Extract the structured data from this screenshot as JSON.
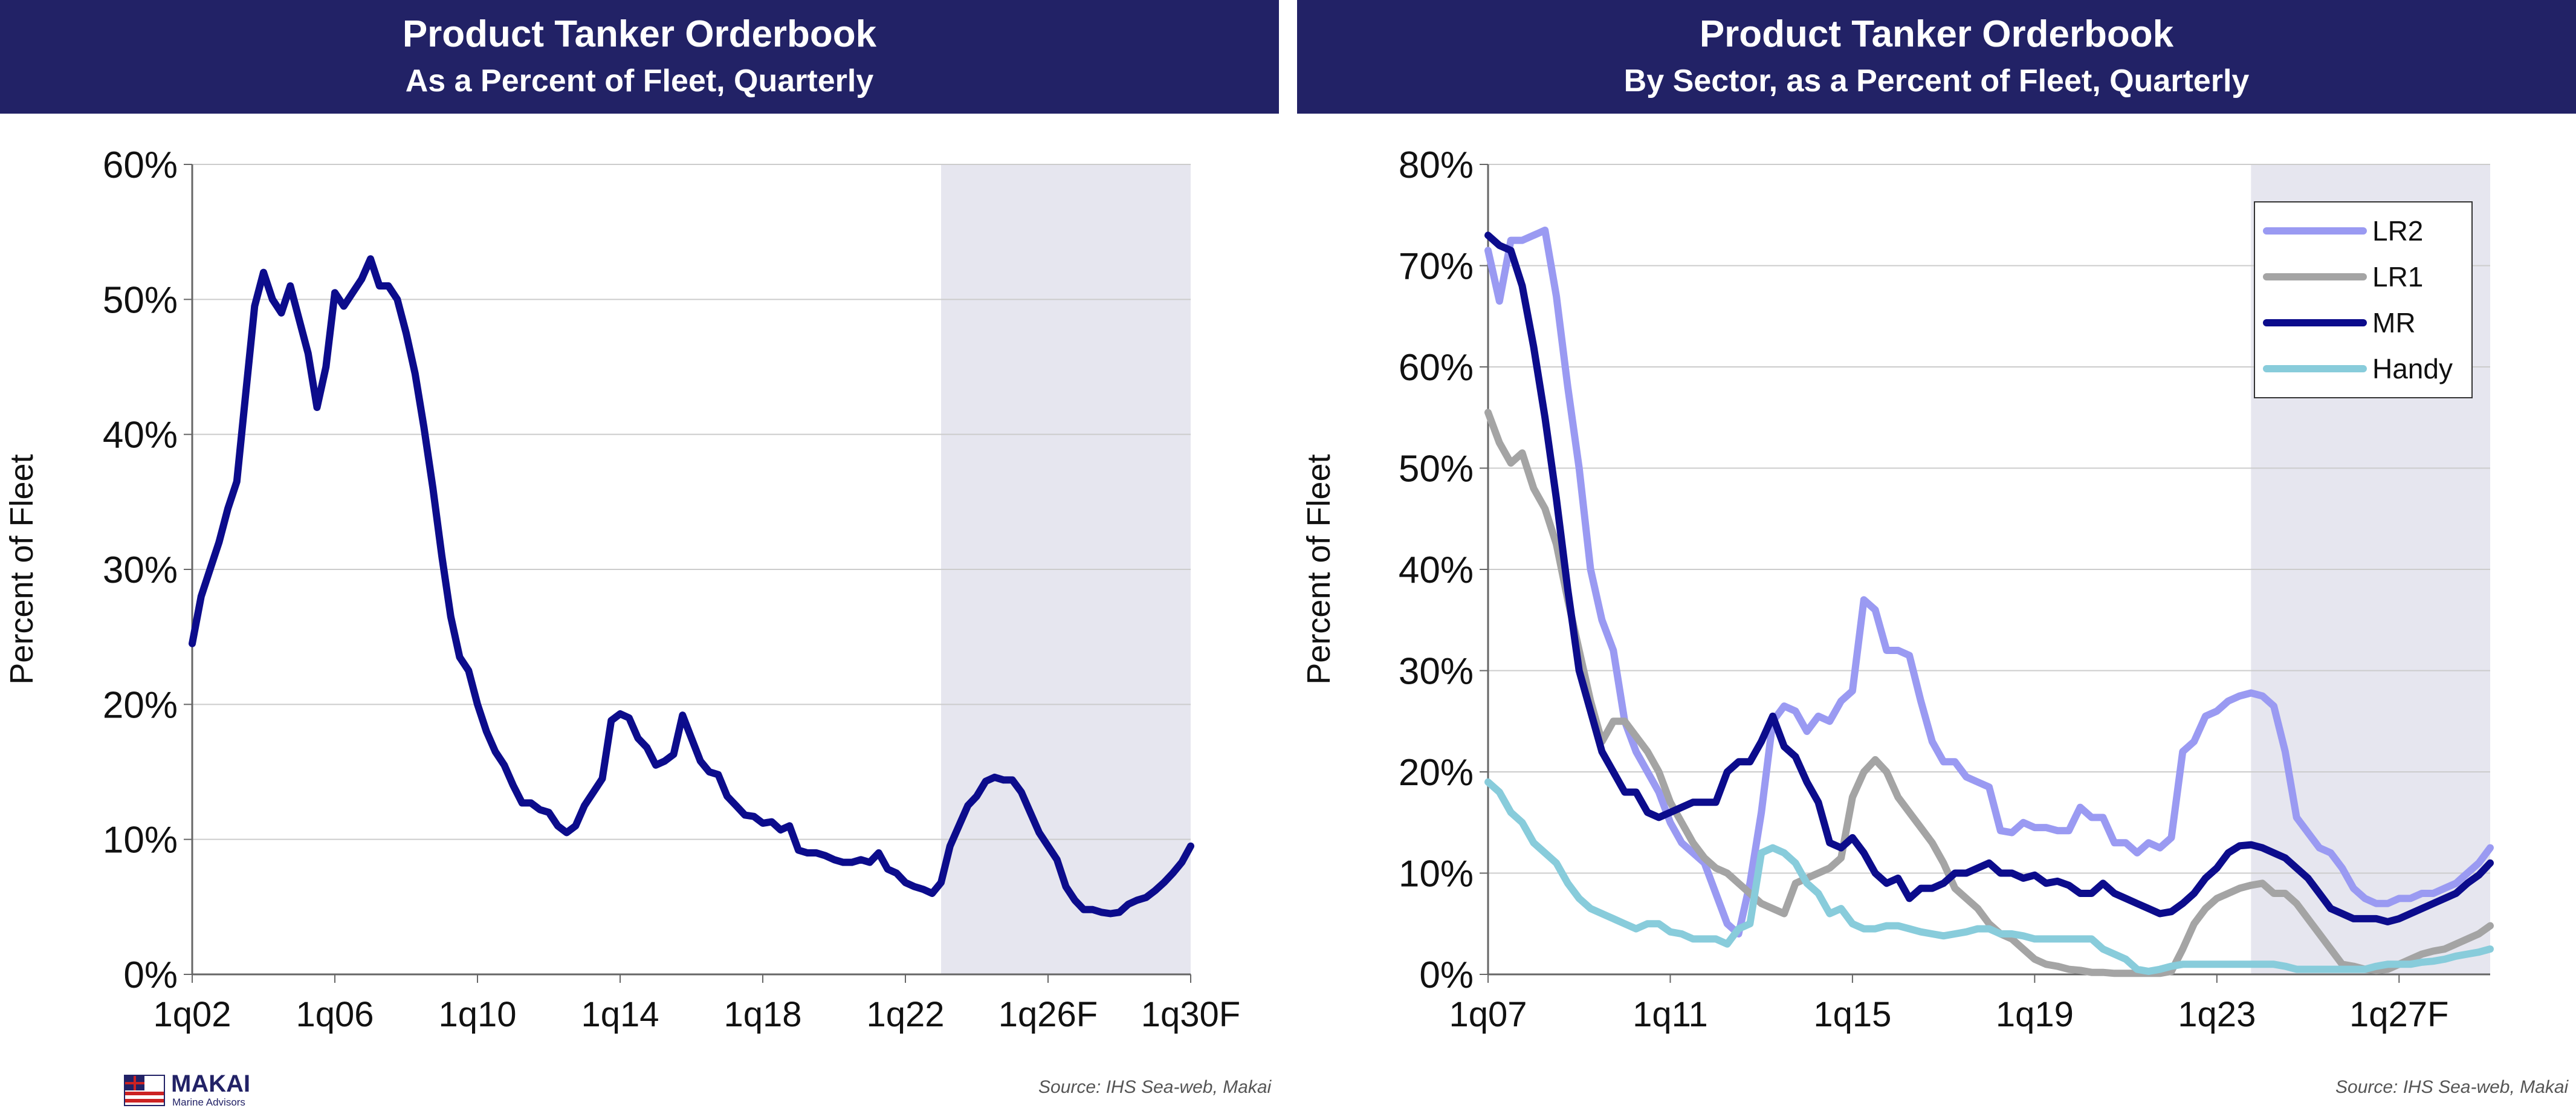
{
  "left_banner": {
    "title": "Product Tanker Orderbook",
    "subtitle": "As a Percent of Fleet, Quarterly"
  },
  "right_banner": {
    "title": "Product Tanker Orderbook",
    "subtitle": "By Sector, as a Percent of Fleet, Quarterly"
  },
  "footer": {
    "source_left": "Source: IHS Sea-web, Makai",
    "source_right": "Source: IHS Sea-web, Makai",
    "logo_name": "MAKAI",
    "logo_sub": "Marine Advisors"
  },
  "chart_data": [
    {
      "type": "line",
      "title": "Product Tanker Orderbook",
      "subtitle": "As a Percent of Fleet, Quarterly",
      "ylabel": "Percent of Fleet",
      "xlabel": "",
      "x_start": "1q02",
      "x_end": "2q30",
      "x_tick_labels": [
        "1q02",
        "1q06",
        "1q10",
        "1q14",
        "1q18",
        "1q22",
        "1q26F",
        "1q30F"
      ],
      "ylim": [
        0,
        60
      ],
      "y_tick_labels": [
        "0%",
        "10%",
        "20%",
        "30%",
        "40%",
        "50%",
        "60%"
      ],
      "grid": true,
      "forecast_shaded_from": "1q23",
      "series": [
        {
          "color": "#0c0c8c",
          "values": [
            24.5,
            28,
            30,
            32,
            34.5,
            36.5,
            43,
            49.5,
            52,
            50,
            49,
            51,
            48.5,
            46,
            42,
            45,
            50.5,
            49.5,
            50.5,
            51.5,
            53,
            51,
            51,
            50,
            47.5,
            44.5,
            40.5,
            36,
            31,
            26.5,
            23.5,
            22.5,
            20,
            18,
            16.5,
            15.5,
            14,
            12.7,
            12.7,
            12.2,
            12,
            11,
            10.5,
            11,
            12.5,
            13.5,
            14.5,
            18.8,
            19.3,
            19,
            17.5,
            16.8,
            15.5,
            15.8,
            16.3,
            19.2,
            17.5,
            15.8,
            15,
            14.8,
            13.2,
            12.5,
            11.8,
            11.7,
            11.2,
            11.3,
            10.7,
            11,
            9.2,
            9,
            9,
            8.8,
            8.5,
            8.3,
            8.3,
            8.5,
            8.3,
            9,
            7.8,
            7.5,
            6.8,
            6.5,
            6.3,
            6,
            6.8,
            9.5,
            11,
            12.5,
            13.2,
            14.3,
            14.6,
            14.4,
            14.4,
            13.5,
            12,
            10.5,
            9.5,
            8.5,
            6.5,
            5.5,
            4.8,
            4.8,
            4.6,
            4.5,
            4.6,
            5.2,
            5.5,
            5.7,
            6.2,
            6.8,
            7.5,
            8.3,
            9.5
          ]
        }
      ]
    },
    {
      "type": "line",
      "title": "Product Tanker Orderbook",
      "subtitle": "By Sector, as a Percent of Fleet, Quarterly",
      "ylabel": "Percent of Fleet",
      "xlabel": "",
      "x_start": "1q07",
      "x_end": "4q30",
      "x_tick_labels": [
        "1q07",
        "1q11",
        "1q15",
        "1q19",
        "1q23",
        "1q27F"
      ],
      "ylim": [
        0,
        80
      ],
      "y_tick_labels": [
        "0%",
        "10%",
        "20%",
        "30%",
        "40%",
        "50%",
        "60%",
        "70%",
        "80%"
      ],
      "grid": true,
      "forecast_shaded_from": "4q23",
      "legend": "top-right",
      "series": [
        {
          "name": "LR2",
          "color": "#9a9af2",
          "values": [
            71.5,
            66.5,
            72.5,
            72.5,
            73,
            73.5,
            67,
            58,
            50,
            40,
            35,
            32,
            25,
            22,
            20,
            18,
            15,
            13,
            12,
            11,
            8,
            5,
            4,
            9,
            16,
            25,
            26.5,
            26,
            24,
            25.5,
            25,
            27,
            28,
            37,
            36,
            32,
            32,
            31.5,
            27,
            23,
            21,
            21,
            19.5,
            19,
            18.5,
            14.2,
            14,
            15,
            14.5,
            14.5,
            14.2,
            14.2,
            16.5,
            15.5,
            15.5,
            13,
            13,
            12,
            13,
            12.5,
            13.5,
            22,
            23,
            25.5,
            26,
            27,
            27.5,
            27.8,
            27.5,
            26.5,
            22,
            15.5,
            14,
            12.5,
            12,
            10.5,
            8.5,
            7.5,
            7,
            7,
            7.5,
            7.5,
            8,
            8,
            8.5,
            9,
            10,
            11,
            12.5
          ]
        },
        {
          "name": "LR1",
          "color": "#a4a4a4",
          "values": [
            55.5,
            52.5,
            50.5,
            51.5,
            48,
            46,
            42.5,
            37,
            32,
            27,
            23,
            25,
            25,
            23.5,
            22,
            20,
            17,
            15,
            13,
            11.5,
            10.5,
            10,
            9,
            8,
            7,
            6.5,
            6,
            9,
            9.5,
            10,
            10.5,
            11.5,
            17.5,
            20,
            21.2,
            20,
            17.5,
            16,
            14.5,
            13,
            11,
            8.5,
            7.5,
            6.5,
            5,
            4,
            3.5,
            2.5,
            1.5,
            1,
            0.8,
            0.5,
            0.4,
            0.2,
            0.2,
            0.1,
            0.1,
            0.1,
            0.1,
            0.1,
            0.3,
            2.5,
            5,
            6.5,
            7.5,
            8,
            8.5,
            8.8,
            9,
            8,
            8,
            7,
            5.5,
            4,
            2.5,
            1,
            0.8,
            0.5,
            0.4,
            0.5,
            1,
            1.5,
            2,
            2.3,
            2.5,
            3,
            3.5,
            4,
            4.8
          ]
        },
        {
          "name": "MR",
          "color": "#0c0c8c",
          "values": [
            73,
            72,
            71.5,
            68,
            62,
            55,
            47,
            38,
            30,
            26,
            22,
            20,
            18,
            18,
            16,
            15.5,
            16,
            16.5,
            17,
            17,
            17,
            20,
            21,
            21,
            23,
            25.5,
            22.5,
            21.5,
            19,
            17,
            13,
            12.5,
            13.5,
            12,
            10,
            9,
            9.5,
            7.5,
            8.5,
            8.5,
            9,
            10,
            10,
            10.5,
            11,
            10,
            10,
            9.5,
            9.8,
            9,
            9.2,
            8.8,
            8,
            8,
            9,
            8,
            7.5,
            7,
            6.5,
            6,
            6.2,
            7,
            8,
            9.5,
            10.5,
            12,
            12.7,
            12.8,
            12.5,
            12,
            11.5,
            10.5,
            9.5,
            8,
            6.5,
            6,
            5.5,
            5.5,
            5.5,
            5.2,
            5.5,
            6,
            6.5,
            7,
            7.5,
            8,
            9,
            9.8,
            11
          ]
        },
        {
          "name": "Handy",
          "color": "#88ccdb",
          "values": [
            19,
            18,
            16,
            15,
            13,
            12,
            11,
            9,
            7.5,
            6.5,
            6,
            5.5,
            5,
            4.5,
            5,
            5,
            4.2,
            4,
            3.5,
            3.5,
            3.5,
            3,
            4.5,
            5,
            12,
            12.5,
            12,
            11,
            9,
            8,
            6,
            6.5,
            5,
            4.5,
            4.5,
            4.8,
            4.8,
            4.5,
            4.2,
            4,
            3.8,
            4,
            4.2,
            4.5,
            4.5,
            4,
            4,
            3.8,
            3.5,
            3.5,
            3.5,
            3.5,
            3.5,
            3.5,
            2.5,
            2,
            1.5,
            0.5,
            0.3,
            0.5,
            0.8,
            1,
            1,
            1,
            1,
            1,
            1,
            1,
            1,
            1,
            0.8,
            0.5,
            0.5,
            0.5,
            0.5,
            0.5,
            0.5,
            0.5,
            0.8,
            1,
            1,
            1,
            1.2,
            1.3,
            1.5,
            1.8,
            2,
            2.2,
            2.5
          ]
        }
      ]
    }
  ]
}
